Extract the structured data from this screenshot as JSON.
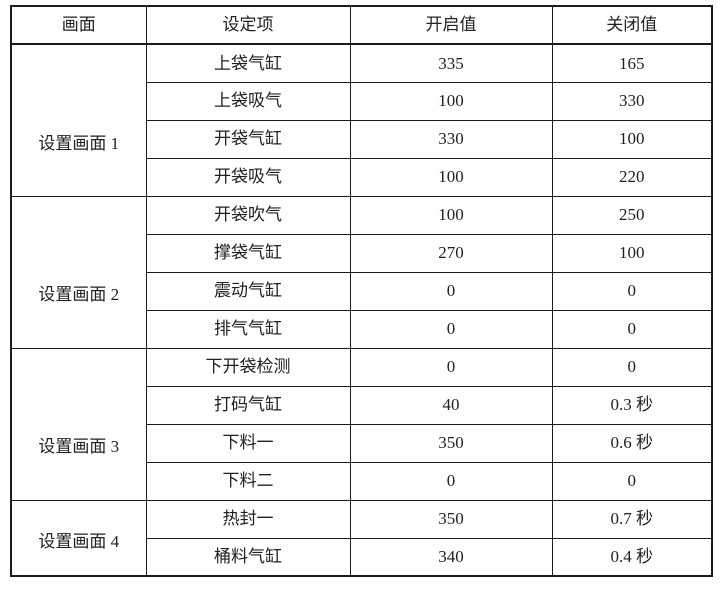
{
  "colors": {
    "border": "#1c1c1c",
    "text": "#212121",
    "background": "#ffffff"
  },
  "table": {
    "headers": [
      "画面",
      "设定项",
      "开启值",
      "关闭值"
    ],
    "groups": [
      {
        "screen": "设置画面 1",
        "rows": [
          {
            "item": "上袋气缸",
            "on": "335",
            "off": "165"
          },
          {
            "item": "上袋吸气",
            "on": "100",
            "off": "330"
          },
          {
            "item": "开袋气缸",
            "on": "330",
            "off": "100"
          },
          {
            "item": "开袋吸气",
            "on": "100",
            "off": "220"
          }
        ]
      },
      {
        "screen": "设置画面 2",
        "rows": [
          {
            "item": "开袋吹气",
            "on": "100",
            "off": "250"
          },
          {
            "item": "撑袋气缸",
            "on": "270",
            "off": "100"
          },
          {
            "item": "震动气缸",
            "on": "0",
            "off": "0"
          },
          {
            "item": "排气气缸",
            "on": "0",
            "off": "0"
          }
        ]
      },
      {
        "screen": "设置画面 3",
        "rows": [
          {
            "item": "下开袋检测",
            "on": "0",
            "off": "0"
          },
          {
            "item": "打码气缸",
            "on": "40",
            "off": "0.3 秒"
          },
          {
            "item": "下料一",
            "on": "350",
            "off": "0.6 秒"
          },
          {
            "item": "下料二",
            "on": "0",
            "off": "0"
          }
        ]
      },
      {
        "screen": "设置画面 4",
        "rows": [
          {
            "item": "热封一",
            "on": "350",
            "off": "0.7 秒"
          },
          {
            "item": "桶料气缸",
            "on": "340",
            "off": "0.4 秒"
          }
        ]
      }
    ]
  }
}
